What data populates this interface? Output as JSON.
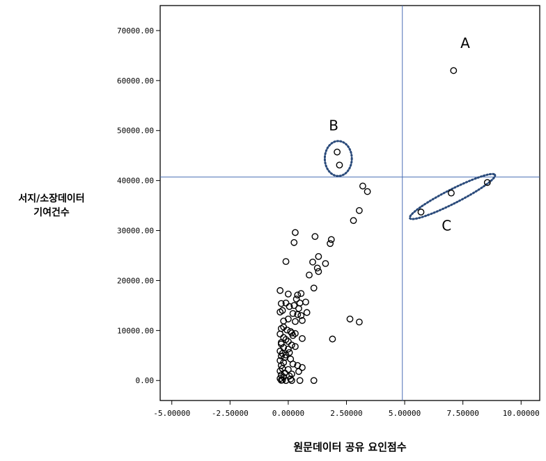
{
  "chart_data": {
    "type": "scatter",
    "xlabel": "원문데이터 공유 요인점수",
    "ylabel_lines": [
      "서지/소장데이터",
      "기여건수"
    ],
    "xlim": [
      -5.5,
      10.8
    ],
    "ylim": [
      -4000,
      75000
    ],
    "x_ticks": [
      {
        "value": -5,
        "label": "-5.00000"
      },
      {
        "value": -2.5,
        "label": "-2.50000"
      },
      {
        "value": 0,
        "label": "0.00000"
      },
      {
        "value": 2.5,
        "label": "2.50000"
      },
      {
        "value": 5,
        "label": "5.00000"
      },
      {
        "value": 7.5,
        "label": "7.50000"
      },
      {
        "value": 10,
        "label": "10.00000"
      }
    ],
    "y_ticks": [
      {
        "value": 0,
        "label": "0.00"
      },
      {
        "value": 10000,
        "label": "10000.00"
      },
      {
        "value": 20000,
        "label": "20000.00"
      },
      {
        "value": 30000,
        "label": "30000.00"
      },
      {
        "value": 40000,
        "label": "40000.00"
      },
      {
        "value": 50000,
        "label": "50000.00"
      },
      {
        "value": 60000,
        "label": "60000.00"
      },
      {
        "value": 70000,
        "label": "70000.00"
      }
    ],
    "reference_lines": {
      "vertical_x": 4.9,
      "horizontal_y": 40700
    },
    "annotations": [
      {
        "label": "A",
        "x": 7.6,
        "y": 66500
      },
      {
        "label": "B",
        "x": 1.95,
        "y": 50000
      },
      {
        "label": "C",
        "x": 6.8,
        "y": 30000
      }
    ],
    "highlight_ellipses": [
      {
        "group": "B",
        "cx": 2.15,
        "cy": 44400,
        "rx": 0.58,
        "ry": 3500,
        "rotation_deg": 0
      },
      {
        "group": "C",
        "cx": 7.05,
        "cy": 36800,
        "rx": 2.05,
        "ry": 1400,
        "rotation_deg": -27
      }
    ],
    "colors": {
      "reference_line": "#4a6fb5",
      "ellipse": "#2a4a7a",
      "marker": "#000000",
      "axis": "#000000"
    },
    "points": [
      [
        7.1,
        62000
      ],
      [
        2.1,
        45700
      ],
      [
        2.2,
        43100
      ],
      [
        8.55,
        39600
      ],
      [
        7.0,
        37500
      ],
      [
        5.7,
        33700
      ],
      [
        3.2,
        38900
      ],
      [
        3.4,
        37800
      ],
      [
        3.05,
        34000
      ],
      [
        2.8,
        32000
      ],
      [
        0.3,
        29600
      ],
      [
        1.15,
        28800
      ],
      [
        0.25,
        27600
      ],
      [
        1.85,
        28200
      ],
      [
        1.8,
        27400
      ],
      [
        1.3,
        24800
      ],
      [
        1.05,
        23700
      ],
      [
        1.6,
        23400
      ],
      [
        1.25,
        22500
      ],
      [
        1.3,
        21800
      ],
      [
        0.9,
        21100
      ],
      [
        -0.1,
        23800
      ],
      [
        1.1,
        18500
      ],
      [
        -0.35,
        18000
      ],
      [
        0.0,
        17300
      ],
      [
        0.4,
        17100
      ],
      [
        0.55,
        17400
      ],
      [
        0.35,
        16300
      ],
      [
        0.5,
        15500
      ],
      [
        0.75,
        15700
      ],
      [
        0.25,
        15000
      ],
      [
        -0.3,
        15400
      ],
      [
        -0.1,
        15500
      ],
      [
        0.05,
        14800
      ],
      [
        0.45,
        14400
      ],
      [
        -0.25,
        14000
      ],
      [
        -0.35,
        13700
      ],
      [
        0.2,
        13400
      ],
      [
        0.4,
        13200
      ],
      [
        0.55,
        13000
      ],
      [
        0.8,
        13600
      ],
      [
        0.6,
        12000
      ],
      [
        0.3,
        11800
      ],
      [
        0.0,
        12300
      ],
      [
        -0.2,
        11900
      ],
      [
        2.65,
        12300
      ],
      [
        3.05,
        11700
      ],
      [
        -0.3,
        10400
      ],
      [
        -0.05,
        10100
      ],
      [
        0.1,
        9800
      ],
      [
        0.3,
        9400
      ],
      [
        0.2,
        9000
      ],
      [
        -0.35,
        9300
      ],
      [
        -0.2,
        8600
      ],
      [
        -0.1,
        8200
      ],
      [
        0.0,
        7800
      ],
      [
        0.6,
        8400
      ],
      [
        1.9,
        8300
      ],
      [
        -0.3,
        7300
      ],
      [
        0.15,
        7100
      ],
      [
        -0.2,
        6600
      ],
      [
        0.0,
        6300
      ],
      [
        0.3,
        6800
      ],
      [
        -0.35,
        5900
      ],
      [
        -0.25,
        5400
      ],
      [
        0.05,
        5600
      ],
      [
        -0.3,
        4900
      ],
      [
        -0.15,
        4600
      ],
      [
        0.1,
        4300
      ],
      [
        -0.35,
        4000
      ],
      [
        -0.2,
        3600
      ],
      [
        0.2,
        3300
      ],
      [
        -0.3,
        3000
      ],
      [
        0.4,
        3000
      ],
      [
        0.6,
        2600
      ],
      [
        -0.25,
        2400
      ],
      [
        0.0,
        2200
      ],
      [
        -0.35,
        1900
      ],
      [
        0.45,
        1800
      ],
      [
        -0.15,
        1500
      ],
      [
        -0.3,
        1100
      ],
      [
        0.05,
        900
      ],
      [
        -0.2,
        700
      ],
      [
        -0.35,
        400
      ],
      [
        0.1,
        300
      ],
      [
        -0.25,
        100
      ],
      [
        -0.1,
        0
      ],
      [
        0.15,
        0
      ],
      [
        0.5,
        0
      ],
      [
        1.1,
        0
      ],
      [
        -0.3,
        50
      ],
      [
        -0.3,
        7600
      ],
      [
        -0.2,
        10700
      ],
      [
        0.15,
        9500
      ],
      [
        -0.1,
        5100
      ],
      [
        0.15,
        1300
      ]
    ]
  }
}
